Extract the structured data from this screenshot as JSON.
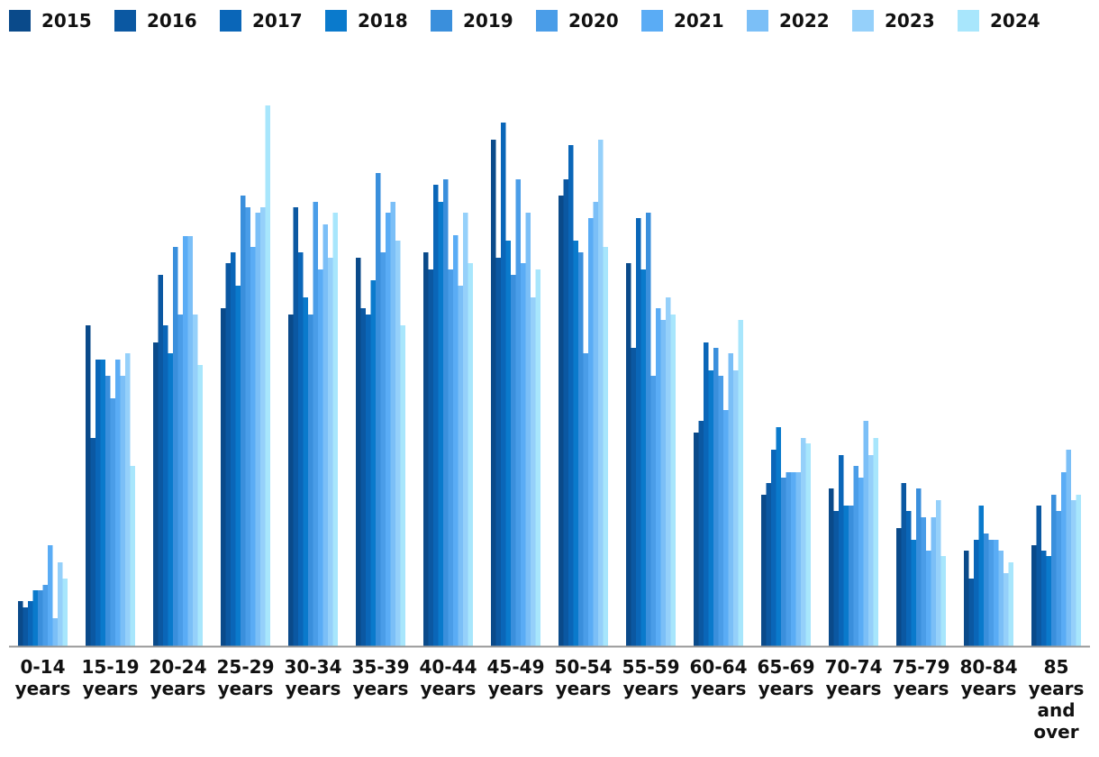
{
  "chart_data": {
    "type": "bar",
    "categories": [
      "0-14 years",
      "15-19 years",
      "20-24 years",
      "25-29 years",
      "30-34 years",
      "35-39 years",
      "40-44 years",
      "45-49 years",
      "50-54 years",
      "55-59 years",
      "60-64 years",
      "65-69 years",
      "70-74 years",
      "75-79 years",
      "80-84 years",
      "85 years and over"
    ],
    "series": [
      {
        "name": "2015",
        "color": "#0a4a8a",
        "values": [
          50,
          356,
          337,
          375,
          368,
          431,
          437,
          562,
          500,
          425,
          237,
          168,
          175,
          131,
          106,
          112
        ]
      },
      {
        "name": "2016",
        "color": "#0b58a2",
        "values": [
          43,
          231,
          412,
          425,
          487,
          375,
          418,
          431,
          518,
          331,
          250,
          181,
          150,
          181,
          75,
          156
        ]
      },
      {
        "name": "2017",
        "color": "#0a66b8",
        "values": [
          50,
          318,
          356,
          437,
          437,
          368,
          512,
          581,
          556,
          475,
          337,
          218,
          212,
          150,
          118,
          106
        ]
      },
      {
        "name": "2018",
        "color": "#0a7acc",
        "values": [
          62,
          318,
          325,
          400,
          387,
          406,
          493,
          450,
          450,
          418,
          306,
          243,
          156,
          118,
          156,
          100
        ]
      },
      {
        "name": "2019",
        "color": "#3a8fdc",
        "values": [
          62,
          300,
          443,
          500,
          368,
          525,
          518,
          412,
          437,
          481,
          331,
          187,
          156,
          175,
          125,
          168
        ]
      },
      {
        "name": "2020",
        "color": "#4a9de8",
        "values": [
          68,
          275,
          368,
          487,
          493,
          437,
          418,
          518,
          325,
          300,
          300,
          193,
          200,
          143,
          118,
          150
        ]
      },
      {
        "name": "2021",
        "color": "#5aacf5",
        "values": [
          112,
          318,
          455,
          443,
          418,
          481,
          456,
          425,
          475,
          375,
          262,
          193,
          187,
          106,
          118,
          193
        ]
      },
      {
        "name": "2022",
        "color": "#7bbff7",
        "values": [
          31,
          300,
          455,
          481,
          468,
          493,
          400,
          481,
          493,
          362,
          325,
          193,
          250,
          143,
          106,
          218
        ]
      },
      {
        "name": "2023",
        "color": "#95d0fa",
        "values": [
          93,
          325,
          368,
          487,
          431,
          450,
          481,
          387,
          562,
          387,
          306,
          231,
          212,
          162,
          81,
          162
        ]
      },
      {
        "name": "2024",
        "color": "#a8e6fc",
        "values": [
          75,
          200,
          312,
          600,
          481,
          356,
          425,
          418,
          443,
          368,
          362,
          225,
          231,
          100,
          93,
          168
        ]
      }
    ]
  }
}
